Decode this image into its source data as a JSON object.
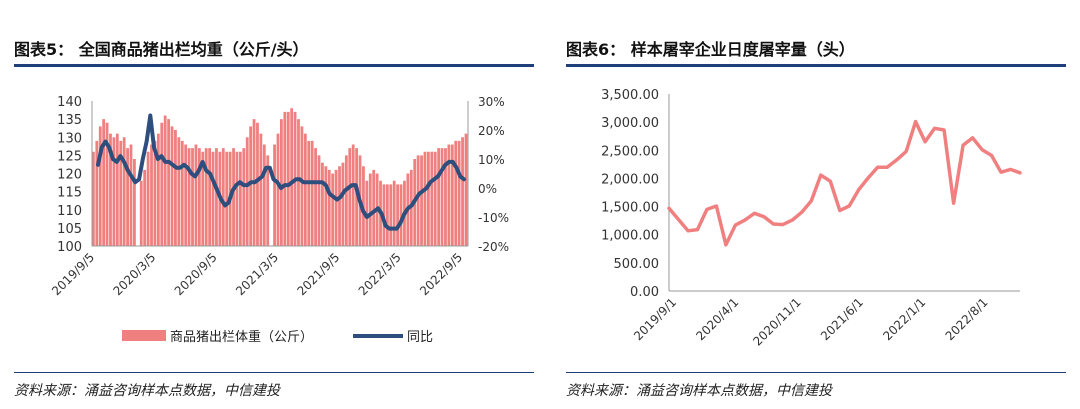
{
  "chart_data": [
    {
      "type": "bar+line",
      "title": "图表5： 全国商品猪出栏均重（公斤/头）",
      "left_axis": {
        "ticks": [
          "140",
          "135",
          "130",
          "125",
          "120",
          "115",
          "110",
          "105",
          "100"
        ],
        "ylim": [
          100,
          140
        ]
      },
      "right_axis": {
        "ticks": [
          "30%",
          "20%",
          "10%",
          "0%",
          "-10%",
          "-20%"
        ],
        "ylim": [
          -20,
          30
        ]
      },
      "x_ticks": [
        "2019/9/5",
        "2020/3/5",
        "2020/9/5",
        "2021/3/5",
        "2021/9/5",
        "2022/3/5",
        "2022/9/5"
      ],
      "series": [
        {
          "name": "商品猪出栏体重（公斤）",
          "kind": "bar",
          "color": "#f08080",
          "values": [
            126,
            129,
            133,
            135,
            134,
            131,
            130,
            131,
            129,
            130,
            127,
            128,
            124,
            100,
            118,
            121,
            126,
            128,
            129,
            131,
            134,
            136,
            135,
            133,
            132,
            130,
            129,
            128,
            127,
            127,
            128,
            127,
            126,
            127,
            127,
            126,
            127,
            126,
            127,
            126,
            126,
            127,
            126,
            126,
            127,
            130,
            133,
            135,
            134,
            131,
            128,
            125,
            100,
            128,
            131,
            135,
            137,
            137,
            138,
            137,
            135,
            133,
            131,
            129,
            129,
            127,
            125,
            123,
            122,
            121,
            120,
            121,
            122,
            123,
            125,
            127,
            128,
            127,
            125,
            122,
            118,
            120,
            121,
            120,
            118,
            117,
            117,
            117,
            118,
            117,
            117,
            118,
            120,
            121,
            124,
            125,
            125,
            126,
            126,
            126,
            126,
            127,
            127,
            127,
            128,
            128,
            129,
            129,
            130,
            131
          ]
        },
        {
          "name": "同比",
          "kind": "line",
          "color": "#2e4f7e",
          "values": [
            8,
            14,
            16,
            14,
            10,
            9,
            11,
            9,
            6,
            4,
            2,
            3,
            10,
            16,
            25,
            14,
            10,
            11,
            9,
            9,
            8,
            7,
            7,
            8,
            7,
            5,
            4,
            6,
            9,
            6,
            5,
            2,
            -1,
            -4,
            -6,
            -5,
            -1,
            1,
            2,
            1,
            1,
            2,
            2,
            3,
            4,
            7,
            7,
            3,
            2,
            0,
            1,
            1,
            2,
            3,
            3,
            2,
            2,
            2,
            2,
            2,
            2,
            1,
            -2,
            -3,
            -4,
            -3,
            -1,
            0,
            1,
            1,
            -4,
            -8,
            -10,
            -9,
            -8,
            -7,
            -9,
            -13,
            -14,
            -14,
            -14,
            -12,
            -9,
            -7,
            -6,
            -4,
            -2,
            -1,
            0,
            2,
            3,
            4,
            6,
            8,
            9,
            9,
            7,
            4,
            3
          ]
        }
      ],
      "legend": [
        "商品猪出栏体重（公斤）",
        "同比"
      ],
      "source": "资料来源：涌益咨询样本点数据，中信建投"
    },
    {
      "type": "line",
      "title": "图表6： 样本屠宰企业日度屠宰量（头）",
      "y_ticks": [
        "3,500.00",
        "3,000.00",
        "2,500.00",
        "2,000.00",
        "1,500.00",
        "1,000.00",
        "500.00",
        "0.00"
      ],
      "ylim": [
        0,
        3500
      ],
      "x_ticks": [
        "2019/9/1",
        "2020/4/1",
        "2020/11/1",
        "2021/6/1",
        "2022/1/1",
        "2022/8/1"
      ],
      "series": [
        {
          "name": "样本屠宰企业日度屠宰量",
          "color": "#f08080",
          "values": [
            1470,
            1270,
            1070,
            1090,
            1450,
            1510,
            820,
            1170,
            1260,
            1380,
            1320,
            1190,
            1180,
            1260,
            1400,
            1600,
            2060,
            1950,
            1430,
            1510,
            1800,
            2010,
            2200,
            2200,
            2330,
            2480,
            3010,
            2650,
            2890,
            2860,
            1560,
            2590,
            2720,
            2510,
            2410,
            2110,
            2160,
            2100
          ]
        }
      ],
      "source": "资料来源：涌益咨询样本点数据，中信建投"
    }
  ]
}
